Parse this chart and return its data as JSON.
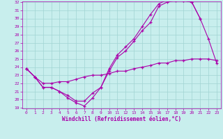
{
  "xlabel": "Windchill (Refroidissement éolien,°C)",
  "xlim": [
    -0.5,
    23.5
  ],
  "ylim": [
    19,
    32
  ],
  "yticks": [
    19,
    20,
    21,
    22,
    23,
    24,
    25,
    26,
    27,
    28,
    29,
    30,
    31,
    32
  ],
  "xticks": [
    0,
    1,
    2,
    3,
    4,
    5,
    6,
    7,
    8,
    9,
    10,
    11,
    12,
    13,
    14,
    15,
    16,
    17,
    18,
    19,
    20,
    21,
    22,
    23
  ],
  "background_color": "#c8eeed",
  "grid_color": "#a0d4d2",
  "line_color": "#aa00aa",
  "curves": [
    {
      "x": [
        0,
        1,
        2,
        3,
        4,
        5,
        6,
        7,
        8,
        9,
        10,
        11,
        12,
        13,
        14,
        15,
        16,
        17,
        18,
        19,
        20,
        21
      ],
      "y": [
        23.8,
        22.8,
        21.5,
        21.5,
        21.0,
        20.2,
        19.6,
        19.2,
        20.2,
        21.5,
        23.5,
        25.2,
        26.0,
        27.2,
        28.5,
        29.5,
        31.5,
        32.0,
        32.2,
        32.2,
        32.0,
        30.0
      ]
    },
    {
      "x": [
        0,
        1,
        2,
        3,
        4,
        5,
        6,
        7,
        8,
        9,
        10,
        11,
        12,
        13,
        14,
        15,
        16,
        17,
        18,
        19,
        20,
        21,
        22,
        23
      ],
      "y": [
        23.8,
        22.8,
        21.5,
        21.5,
        21.0,
        20.5,
        19.8,
        19.8,
        20.8,
        21.5,
        23.8,
        25.5,
        26.5,
        27.5,
        29.0,
        30.5,
        31.8,
        32.3,
        32.3,
        32.2,
        32.0,
        30.0,
        27.5,
        24.5
      ]
    },
    {
      "x": [
        0,
        1,
        2,
        3,
        4,
        5,
        6,
        7,
        8,
        9,
        10,
        11,
        12,
        13,
        14,
        15,
        16,
        17,
        18,
        19,
        20,
        21,
        22,
        23
      ],
      "y": [
        23.8,
        22.8,
        22.0,
        22.0,
        22.2,
        22.2,
        22.5,
        22.8,
        23.0,
        23.0,
        23.2,
        23.5,
        23.5,
        23.8,
        24.0,
        24.2,
        24.5,
        24.5,
        24.8,
        24.8,
        25.0,
        25.0,
        25.0,
        24.8
      ]
    }
  ]
}
